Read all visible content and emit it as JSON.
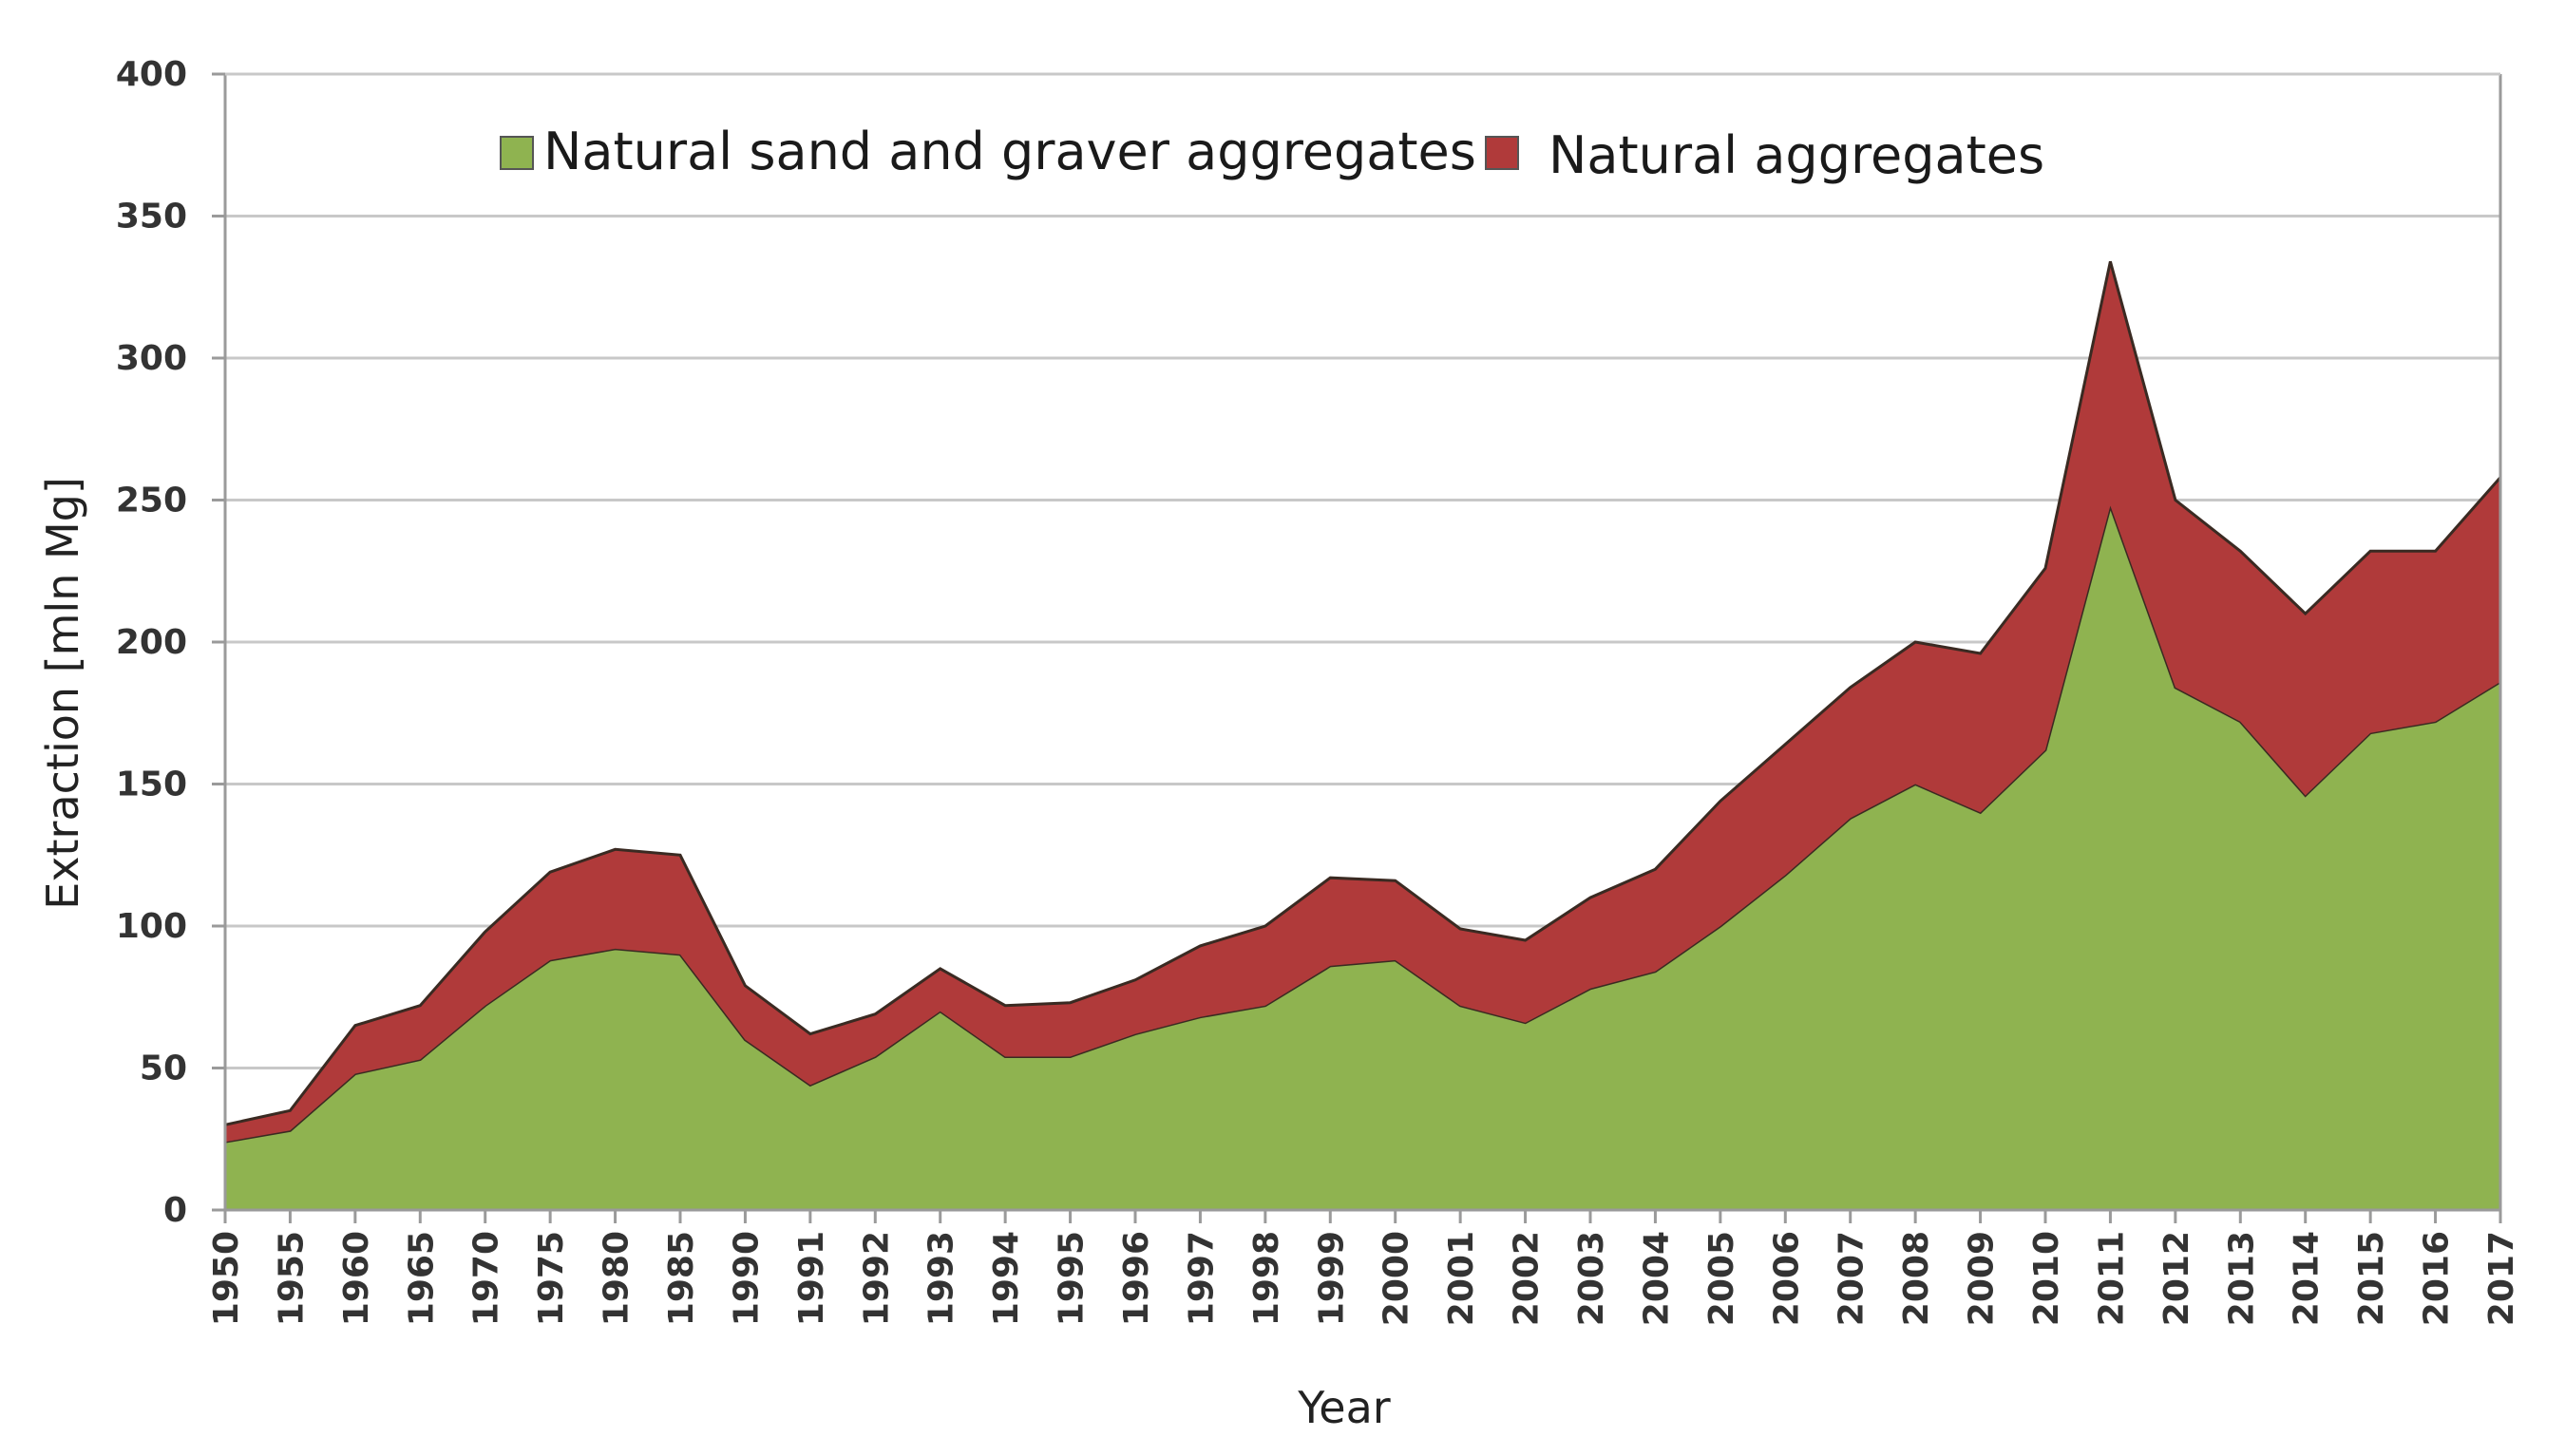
{
  "chart_data": {
    "type": "area",
    "stacked": true,
    "title": "",
    "xlabel": "Year",
    "ylabel": "Extraction [mln Mg]",
    "ylim": [
      0,
      400
    ],
    "yticks": [
      0,
      50,
      100,
      150,
      200,
      250,
      300,
      350,
      400
    ],
    "grid": true,
    "legend_position": "top-center",
    "categories": [
      "1950",
      "1955",
      "1960",
      "1965",
      "1970",
      "1975",
      "1980",
      "1985",
      "1990",
      "1991",
      "1992",
      "1993",
      "1994",
      "1995",
      "1996",
      "1997",
      "1998",
      "1999",
      "2000",
      "2001",
      "2002",
      "2003",
      "2004",
      "2005",
      "2006",
      "2007",
      "2008",
      "2009",
      "2010",
      "2011",
      "2012",
      "2013",
      "2014",
      "2015",
      "2016",
      "2017"
    ],
    "series": [
      {
        "name": "Natural sand and graver aggregates",
        "color": "#8fb350",
        "values": [
          24,
          28,
          48,
          53,
          72,
          88,
          92,
          90,
          60,
          44,
          54,
          70,
          54,
          54,
          62,
          68,
          72,
          86,
          88,
          72,
          66,
          78,
          84,
          100,
          118,
          138,
          150,
          140,
          162,
          248,
          184,
          172,
          146,
          168,
          172,
          186
        ]
      },
      {
        "name": "Natural aggregates",
        "color": "#b03a3a",
        "values": [
          6,
          7,
          17,
          19,
          26,
          31,
          35,
          35,
          19,
          18,
          15,
          15,
          18,
          19,
          19,
          25,
          28,
          31,
          28,
          27,
          29,
          32,
          36,
          44,
          46,
          46,
          50,
          56,
          64,
          86,
          66,
          60,
          64,
          64,
          60,
          72
        ]
      }
    ]
  }
}
